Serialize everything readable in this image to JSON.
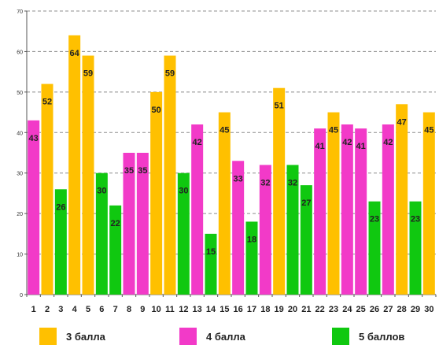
{
  "chart_data": {
    "type": "bar",
    "title": "",
    "xlabel": "",
    "ylabel": "",
    "ylim": [
      0,
      70
    ],
    "yticks": [
      0,
      10,
      20,
      30,
      40,
      50,
      60,
      70
    ],
    "grid": true,
    "legend_position": "bottom",
    "categories": [
      "1",
      "2",
      "3",
      "4",
      "5",
      "6",
      "7",
      "8",
      "9",
      "10",
      "11",
      "12",
      "13",
      "14",
      "15",
      "16",
      "17",
      "18",
      "19",
      "20",
      "21",
      "22",
      "23",
      "24",
      "25",
      "26",
      "27",
      "28",
      "29",
      "30"
    ],
    "values": [
      43,
      52,
      26,
      64,
      59,
      30,
      22,
      35,
      35,
      50,
      59,
      30,
      42,
      15,
      45,
      33,
      18,
      32,
      51,
      32,
      27,
      41,
      45,
      42,
      41,
      23,
      42,
      47,
      23,
      45
    ],
    "groups": [
      "4 балла",
      "3 балла",
      "5 баллов",
      "3 балла",
      "3 балла",
      "5 баллов",
      "5 баллов",
      "4 балла",
      "4 балла",
      "3 балла",
      "3 балла",
      "5 баллов",
      "4 балла",
      "5 баллов",
      "3 балла",
      "4 балла",
      "5 баллов",
      "4 балла",
      "3 балла",
      "5 баллов",
      "5 баллов",
      "4 балла",
      "3 балла",
      "4 балла",
      "4 балла",
      "5 баллов",
      "4 балла",
      "3 балла",
      "5 баллов",
      "3 балла"
    ],
    "series": [
      {
        "name": "3 балла",
        "color": "#FFC000"
      },
      {
        "name": "4 балла",
        "color": "#F23AC8"
      },
      {
        "name": "5 баллов",
        "color": "#10C810"
      }
    ]
  },
  "legend": {
    "items": [
      {
        "label": "3 балла",
        "color": "#FFC000"
      },
      {
        "label": "4 балла",
        "color": "#F23AC8"
      },
      {
        "label": "5 баллов",
        "color": "#10C810"
      }
    ]
  }
}
